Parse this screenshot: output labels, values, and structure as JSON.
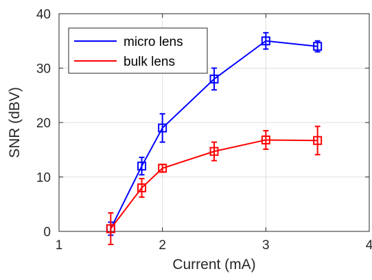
{
  "chart_data": {
    "type": "line",
    "xlabel": "Current (mA)",
    "ylabel": "SNR (dBV)",
    "xlim": [
      1,
      4
    ],
    "ylim": [
      0,
      40
    ],
    "xticks": [
      "1",
      "2",
      "3",
      "4"
    ],
    "yticks": [
      "0",
      "10",
      "20",
      "30",
      "40"
    ],
    "grid": true,
    "legend_position": "top-left",
    "series": [
      {
        "name": "micro lens",
        "color": "#0000ff",
        "marker": "square",
        "x": [
          1.5,
          1.8,
          2.0,
          2.5,
          3.0,
          3.5
        ],
        "y": [
          0.5,
          12,
          19,
          28,
          35,
          34
        ],
        "err": [
          1.2,
          1.6,
          2.6,
          2.0,
          1.5,
          1.0
        ]
      },
      {
        "name": "bulk lens",
        "color": "#ff0000",
        "marker": "square",
        "x": [
          1.5,
          1.8,
          2.0,
          2.5,
          3.0,
          3.5
        ],
        "y": [
          0.5,
          8,
          11.6,
          14.7,
          16.8,
          16.7
        ],
        "err": [
          2.9,
          1.7,
          0.7,
          1.7,
          1.7,
          2.6
        ]
      }
    ]
  }
}
